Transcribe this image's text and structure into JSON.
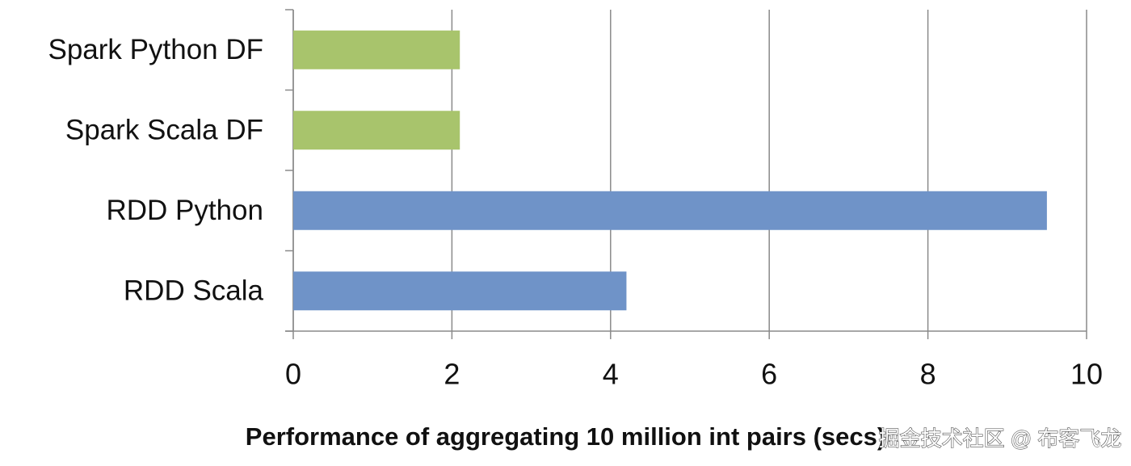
{
  "chart_data": {
    "type": "hbar",
    "title": "Performance of aggregating 10 million int pairs (secs)",
    "categories": [
      "Spark Python DF",
      "Spark Scala DF",
      "RDD Python",
      "RDD Scala"
    ],
    "values": [
      2.1,
      2.1,
      9.5,
      4.2
    ],
    "colors": [
      "#a8c46c",
      "#a8c46c",
      "#6f93c8",
      "#6f93c8"
    ],
    "xlim": [
      0,
      10
    ],
    "xticks": [
      0,
      2,
      4,
      6,
      8,
      10
    ],
    "grid": true
  },
  "watermark": "掘金技术社区 @ 布客飞龙"
}
